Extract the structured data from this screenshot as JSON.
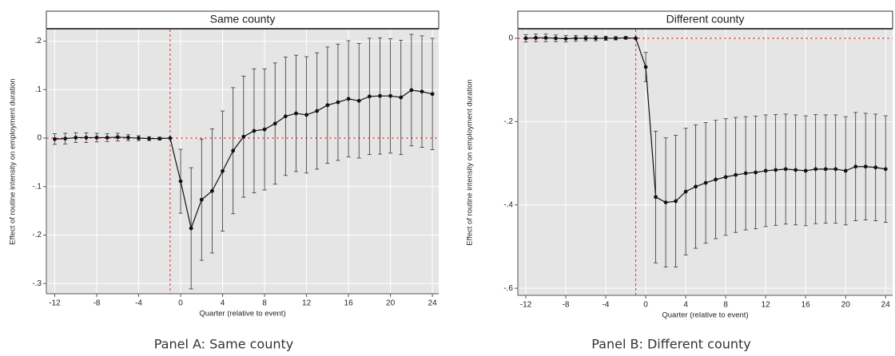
{
  "chart_data": [
    {
      "type": "line",
      "title": "Same county",
      "caption": "Panel A: Same county",
      "x_label": "Quarter (relative to event)",
      "y_label": "Effect of routine intensity on employment duration",
      "x": [
        -12,
        -11,
        -10,
        -9,
        -8,
        -7,
        -6,
        -5,
        -4,
        -3,
        -2,
        -1,
        0,
        1,
        2,
        3,
        4,
        5,
        6,
        7,
        8,
        9,
        10,
        11,
        12,
        13,
        14,
        15,
        16,
        17,
        18,
        19,
        20,
        21,
        22,
        23,
        24
      ],
      "series": [
        {
          "color": "#111111",
          "values": [
            -0.002,
            -0.001,
            0.001,
            0.001,
            0.001,
            0.001,
            0.002,
            0.001,
            0.0,
            -0.001,
            -0.001,
            0,
            -0.089,
            -0.186,
            -0.127,
            -0.109,
            -0.068,
            -0.026,
            0.003,
            0.015,
            0.018,
            0.03,
            0.045,
            0.051,
            0.048,
            0.056,
            0.068,
            0.074,
            0.081,
            0.077,
            0.086,
            0.087,
            0.087,
            0.084,
            0.099,
            0.096,
            0.091
          ],
          "errors": [
            0.011,
            0.011,
            0.01,
            0.01,
            0.009,
            0.008,
            0.008,
            0.006,
            0.005,
            0.004,
            0.003,
            0,
            0.066,
            0.125,
            0.125,
            0.128,
            0.124,
            0.13,
            0.125,
            0.128,
            0.125,
            0.125,
            0.122,
            0.12,
            0.12,
            0.12,
            0.12,
            0.12,
            0.12,
            0.118,
            0.12,
            0.12,
            0.118,
            0.118,
            0.115,
            0.115,
            0.115
          ]
        }
      ],
      "xlim": [
        -12.8,
        24.6
      ],
      "xticks": [
        -12,
        -8,
        -4,
        0,
        4,
        8,
        12,
        16,
        20,
        24
      ],
      "ylim": [
        -0.321,
        0.224
      ],
      "yticks": [
        {
          "value": -0.3,
          "label": "-.3"
        },
        {
          "value": -0.2,
          "label": "-.2"
        },
        {
          "value": -0.1,
          "label": "-.1"
        },
        0,
        {
          "value": 0.1,
          "label": ".1"
        },
        {
          "value": 0.2,
          "label": ".2"
        }
      ],
      "reference_x": -1,
      "reference_y": 0,
      "reference_color": "#e0302a",
      "grid": true
    },
    {
      "type": "line",
      "title": "Different county",
      "caption": "Panel B: Different county",
      "x_label": "Quarter (relative to event)",
      "y_label": "Effect of routine intensity on employment duration",
      "x": [
        -12,
        -11,
        -10,
        -9,
        -8,
        -7,
        -6,
        -5,
        -4,
        -3,
        -2,
        -1,
        0,
        1,
        2,
        3,
        4,
        5,
        6,
        7,
        8,
        9,
        10,
        11,
        12,
        13,
        14,
        15,
        16,
        17,
        18,
        19,
        20,
        21,
        22,
        23,
        24
      ],
      "series": [
        {
          "color": "#111111",
          "values": [
            0.0,
            0.001,
            0.001,
            0.0,
            -0.001,
            0.0,
            0.0,
            0.0,
            0.0,
            0.0,
            0.001,
            0,
            -0.069,
            -0.381,
            -0.394,
            -0.391,
            -0.368,
            -0.356,
            -0.347,
            -0.339,
            -0.333,
            -0.328,
            -0.324,
            -0.322,
            -0.318,
            -0.316,
            -0.314,
            -0.316,
            -0.318,
            -0.314,
            -0.314,
            -0.314,
            -0.318,
            -0.308,
            -0.308,
            -0.31,
            -0.314
          ],
          "errors": [
            0.009,
            0.009,
            0.009,
            0.008,
            0.008,
            0.007,
            0.006,
            0.006,
            0.005,
            0.004,
            0.003,
            0,
            0.035,
            0.158,
            0.155,
            0.158,
            0.152,
            0.148,
            0.145,
            0.142,
            0.14,
            0.138,
            0.136,
            0.135,
            0.134,
            0.133,
            0.132,
            0.132,
            0.132,
            0.131,
            0.13,
            0.13,
            0.13,
            0.13,
            0.128,
            0.128,
            0.128
          ]
        }
      ],
      "xlim": [
        -12.8,
        24.7
      ],
      "xticks": [
        -12,
        -8,
        -4,
        0,
        4,
        8,
        12,
        16,
        20,
        24
      ],
      "ylim": [
        -0.617,
        0.021
      ],
      "yticks": [
        {
          "value": -0.6,
          "label": "-.6"
        },
        {
          "value": -0.4,
          "label": "-.4"
        },
        {
          "value": -0.2,
          "label": "-.2"
        },
        0
      ],
      "reference_x": -1,
      "reference_y": 0,
      "reference_color": "#e0302a",
      "grid": true
    }
  ]
}
